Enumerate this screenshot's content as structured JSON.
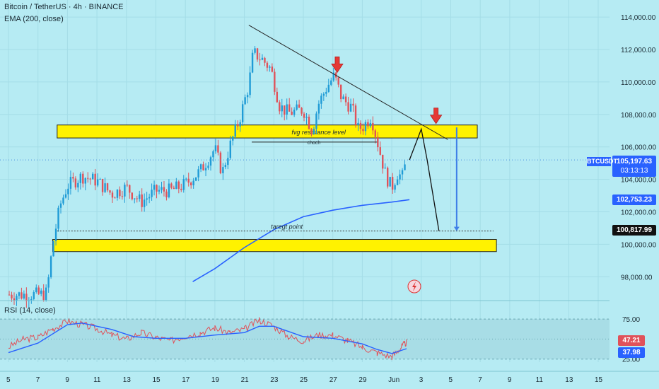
{
  "header": {
    "title": "Bitcoin / TetherUS · 4h · BINANCE",
    "indicator": "EMA (200, close)",
    "rsi_label": "RSI (14, close)"
  },
  "labels": {
    "resistance": "fvg  resistance level",
    "choch": "choch",
    "target": "taregt point"
  },
  "tags": {
    "symbol": "BTCUSDT",
    "price": "105,197.63",
    "countdown": "03:13:13",
    "ema": "102,753.23",
    "target": "100,817.99",
    "rsi": "47.21",
    "rsi_ma": "37.98"
  },
  "colors": {
    "background": "#b6ebf3",
    "up": "#1f9bd6",
    "down": "#e0525a",
    "ema": "#2962ff",
    "zone": "#fff200"
  },
  "chart_data": {
    "type": "candlestick",
    "price_axis": {
      "ticks": [
        98000,
        100000,
        102000,
        104000,
        106000,
        108000,
        110000,
        112000,
        114000
      ],
      "tick_labels": [
        "98,000.00",
        "100,000.00",
        "102,000.00",
        "104,000.00",
        "106,000.00",
        "108,000.00",
        "110,000.00",
        "112,000.00",
        "114,000.00"
      ]
    },
    "time_axis": {
      "tick_labels": [
        "5",
        "7",
        "9",
        "11",
        "13",
        "15",
        "17",
        "19",
        "21",
        "23",
        "25",
        "27",
        "29",
        "Jun",
        "3",
        "5",
        "7",
        "9",
        "11",
        "13",
        "15"
      ]
    },
    "rsi_axis": {
      "ticks": [
        25,
        75
      ],
      "tick_labels": [
        "25.00",
        "75.00"
      ]
    },
    "close_path": [
      [
        5,
        96900
      ],
      [
        7.2,
        96900
      ],
      [
        7.6,
        97000
      ],
      [
        8,
        100000
      ],
      [
        8.5,
        102400
      ],
      [
        9,
        103600
      ],
      [
        10,
        104200
      ],
      [
        11,
        103900
      ],
      [
        12,
        103100
      ],
      [
        13,
        103500
      ],
      [
        14,
        102600
      ],
      [
        15,
        103300
      ],
      [
        16,
        103300
      ],
      [
        17,
        103700
      ],
      [
        18,
        104500
      ],
      [
        19,
        105900
      ],
      [
        19.5,
        104400
      ],
      [
        20,
        106000
      ],
      [
        20.7,
        107800
      ],
      [
        21.3,
        109800
      ],
      [
        21.6,
        111800
      ],
      [
        22.2,
        111400
      ],
      [
        22.8,
        110800
      ],
      [
        23.4,
        108500
      ],
      [
        24,
        108100
      ],
      [
        25,
        108300
      ],
      [
        25.6,
        107000
      ],
      [
        26,
        108600
      ],
      [
        26.6,
        109700
      ],
      [
        27.1,
        110400
      ],
      [
        27.6,
        109000
      ],
      [
        28.3,
        108400
      ],
      [
        28.7,
        107100
      ],
      [
        29.1,
        107300
      ],
      [
        29.6,
        107900
      ],
      [
        30,
        106400
      ],
      [
        30.6,
        104200
      ],
      [
        31,
        103500
      ],
      [
        31.4,
        104400
      ],
      [
        31.7,
        104100
      ],
      [
        32,
        105200
      ]
    ],
    "ema_line": [
      [
        17.5,
        97700
      ],
      [
        19,
        98500
      ],
      [
        21,
        99800
      ],
      [
        23,
        100900
      ],
      [
        25,
        101700
      ],
      [
        27,
        102100
      ],
      [
        29,
        102400
      ],
      [
        31,
        102600
      ],
      [
        32.2,
        102750
      ]
    ],
    "projection": [
      [
        32.2,
        105200
      ],
      [
        33.0,
        107100
      ],
      [
        33.4,
        105200
      ],
      [
        34.2,
        100817.99
      ]
    ],
    "trendline": [
      [
        21.3,
        113500
      ],
      [
        34.8,
        106450
      ]
    ],
    "resistance_zone": {
      "from": 8.3,
      "to": 36.8,
      "low": 106550,
      "high": 107350
    },
    "support_zone": {
      "from": 8.0,
      "to": 38.1,
      "low": 99550,
      "high": 100300
    },
    "choch_line": {
      "from": 21.5,
      "to": 30.0,
      "value": 106300
    },
    "target_line": {
      "from": 8.3,
      "to": 37.9,
      "value": 100817.99
    },
    "arrows_down": [
      [
        27.3,
        110500
      ],
      [
        34.0,
        107350
      ]
    ],
    "measure": {
      "x": 35.4,
      "from": 107200,
      "to": 100817.99
    },
    "rsi": [
      [
        5,
        40
      ],
      [
        6,
        50
      ],
      [
        7,
        52
      ],
      [
        8,
        63
      ],
      [
        9,
        72
      ],
      [
        10,
        68
      ],
      [
        11,
        63
      ],
      [
        12,
        55
      ],
      [
        13,
        50
      ],
      [
        14,
        58
      ],
      [
        15,
        52
      ],
      [
        16,
        48
      ],
      [
        17,
        54
      ],
      [
        18,
        58
      ],
      [
        19,
        64
      ],
      [
        20,
        58
      ],
      [
        21,
        62
      ],
      [
        22,
        74
      ],
      [
        23,
        66
      ],
      [
        24,
        53
      ],
      [
        25,
        48
      ],
      [
        26,
        55
      ],
      [
        27,
        55
      ],
      [
        28,
        48
      ],
      [
        29,
        40
      ],
      [
        30,
        33
      ],
      [
        31,
        28
      ],
      [
        31.6,
        39
      ],
      [
        32,
        46
      ]
    ],
    "rsi_ma": [
      [
        5,
        33
      ],
      [
        7,
        45
      ],
      [
        9,
        68
      ],
      [
        10,
        70
      ],
      [
        12,
        62
      ],
      [
        13.5,
        53
      ],
      [
        15,
        51
      ],
      [
        17,
        51
      ],
      [
        19,
        55
      ],
      [
        21,
        58
      ],
      [
        22,
        66
      ],
      [
        23,
        66
      ],
      [
        25,
        53
      ],
      [
        27,
        51
      ],
      [
        29,
        44
      ],
      [
        30,
        37
      ],
      [
        31,
        32
      ],
      [
        32,
        38
      ]
    ]
  }
}
